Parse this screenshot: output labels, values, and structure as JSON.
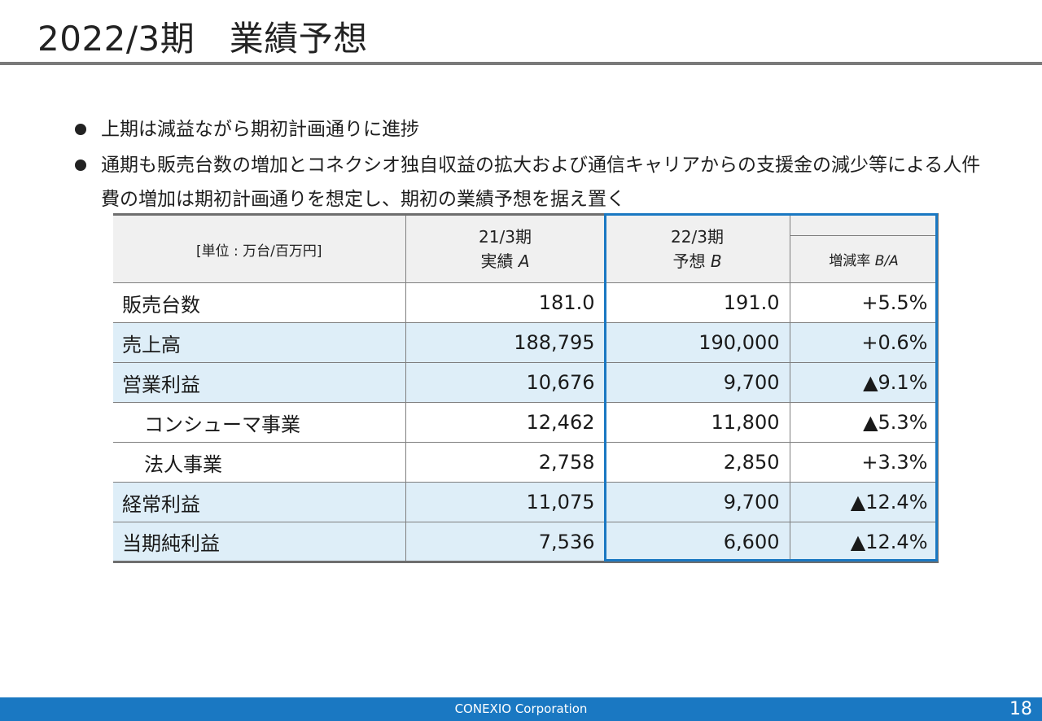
{
  "slide": {
    "title": "2022/3期　業績予想",
    "bullets": [
      "上期は減益ながら期初計画通りに進捗",
      "通期も販売台数の増加とコネクシオ独自収益の拡大および通信キャリアからの支援金の減少等による人件費の増加は期初計画通りを想定し、期初の業績予想を据え置く"
    ]
  },
  "table": {
    "unit_label": "[単位 : 万台/百万円]",
    "col_a_period": "21/3期",
    "col_a_kind": "実績",
    "col_a_letter": "A",
    "col_b_period": "22/3期",
    "col_b_kind": "予想",
    "col_b_letter": "B",
    "col_rate_label": "増減率",
    "col_rate_letters": "B/A",
    "rows": [
      {
        "label": "販売台数",
        "a": "181.0",
        "b": "191.0",
        "rate": "+5.5%"
      },
      {
        "label": "売上高",
        "a": "188,795",
        "b": "190,000",
        "rate": "+0.6%"
      },
      {
        "label": "営業利益",
        "a": "10,676",
        "b": "9,700",
        "rate": "▲9.1%"
      },
      {
        "label": "コンシューマ事業",
        "a": "12,462",
        "b": "11,800",
        "rate": "▲5.3%"
      },
      {
        "label": "法人事業",
        "a": "2,758",
        "b": "2,850",
        "rate": "+3.3%"
      },
      {
        "label": "経常利益",
        "a": "11,075",
        "b": "9,700",
        "rate": "▲12.4%"
      },
      {
        "label": "当期純利益",
        "a": "7,536",
        "b": "6,600",
        "rate": "▲12.4%"
      }
    ]
  },
  "footer": {
    "company": "CONEXIO Corporation",
    "page": "18"
  },
  "colors": {
    "accent": "#1a78c2",
    "row_shade": "#deeef8",
    "header_bg": "#f0f0f0",
    "title_rule": "#7a7a7a"
  }
}
